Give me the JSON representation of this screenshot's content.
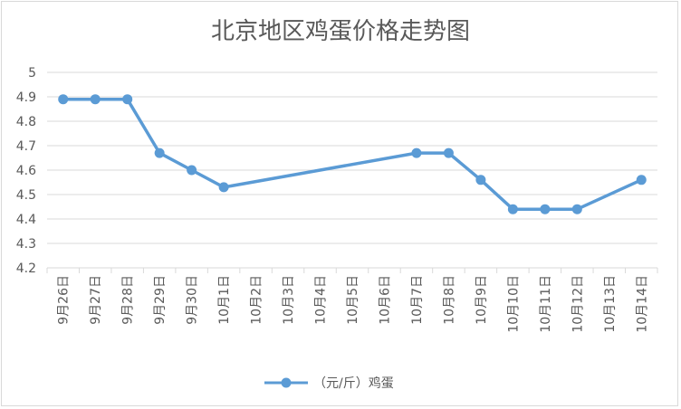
{
  "chart_data": {
    "type": "line",
    "title": "北京地区鸡蛋价格走势图",
    "categories": [
      "9月26日",
      "9月27日",
      "9月28日",
      "9月29日",
      "9月30日",
      "10月1日",
      "10月2日",
      "10月3日",
      "10月4日",
      "10月5日",
      "10月6日",
      "10月7日",
      "10月8日",
      "10月9日",
      "10月10日",
      "10月11日",
      "10月12日",
      "10月13日",
      "10月14日"
    ],
    "series": [
      {
        "name": "（元/斤）鸡蛋",
        "values": [
          4.89,
          4.89,
          4.89,
          4.67,
          4.6,
          4.53,
          null,
          null,
          null,
          null,
          null,
          4.67,
          4.67,
          4.56,
          4.44,
          4.44,
          4.44,
          null,
          4.56
        ],
        "color": "#5b9bd5"
      }
    ],
    "yticks": [
      "4.2",
      "4.3",
      "4.4",
      "4.5",
      "4.6",
      "4.7",
      "4.8",
      "4.9",
      "5"
    ],
    "ylim": [
      4.2,
      5
    ],
    "grid": true,
    "legend": "bottom",
    "xlabel": "",
    "ylabel": ""
  }
}
